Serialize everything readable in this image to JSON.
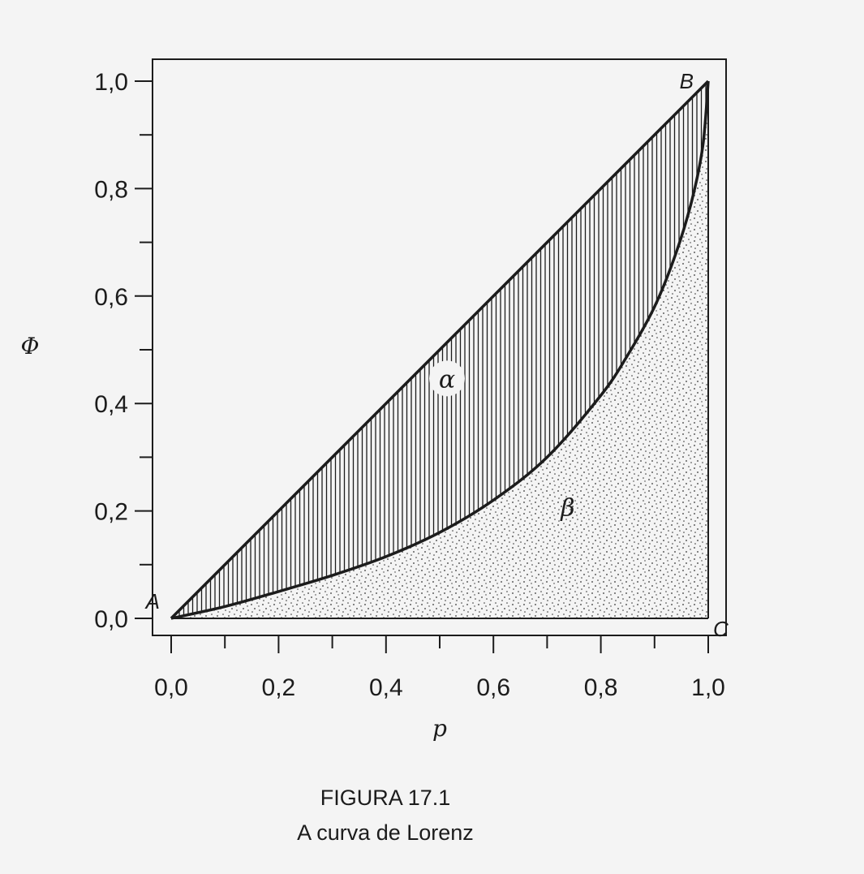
{
  "figure": {
    "number": "FIGURA 17.1",
    "caption": "A curva de Lorenz"
  },
  "chart_data": {
    "type": "line",
    "title": "",
    "xlabel": "p",
    "ylabel": "Φ",
    "xlim": [
      0,
      1
    ],
    "ylim": [
      0,
      1
    ],
    "x_ticks": [
      "0,0",
      "0,2",
      "0,4",
      "0,6",
      "0,8",
      "1,0"
    ],
    "y_ticks": [
      "0,0",
      "0,2",
      "0,4",
      "0,6",
      "0,8",
      "1,0"
    ],
    "x_minor_step": 0.1,
    "y_minor_step": 0.1,
    "grid": false,
    "series": [
      {
        "role": "equality-line",
        "x": [
          0,
          1
        ],
        "y": [
          0,
          1
        ]
      },
      {
        "role": "lorenz-curve",
        "x": [
          0,
          0.1,
          0.2,
          0.3,
          0.4,
          0.5,
          0.6,
          0.7,
          0.8,
          0.85,
          0.9,
          0.94,
          0.97,
          0.99,
          1.0
        ],
        "y": [
          0,
          0.022,
          0.05,
          0.08,
          0.115,
          0.16,
          0.22,
          0.3,
          0.415,
          0.49,
          0.58,
          0.68,
          0.78,
          0.88,
          1.0
        ]
      }
    ],
    "regions": [
      {
        "label": "α",
        "fill": "vertical-hatch",
        "between": [
          "equality-line",
          "lorenz-curve"
        ],
        "label_at": [
          0.645,
          0.43
        ]
      },
      {
        "label": "β",
        "fill": "stipple",
        "between": [
          "lorenz-curve",
          "x-axis-to-p=1"
        ],
        "label_at": [
          0.87,
          0.19
        ]
      }
    ],
    "point_labels": [
      {
        "text": "A",
        "x": 0,
        "y": 0
      },
      {
        "text": "B",
        "x": 1,
        "y": 1
      },
      {
        "text": "C",
        "x": 1,
        "y": 0
      }
    ],
    "colors": {
      "ink": "#1c1c1c",
      "paper": "#f4f4f4"
    }
  }
}
